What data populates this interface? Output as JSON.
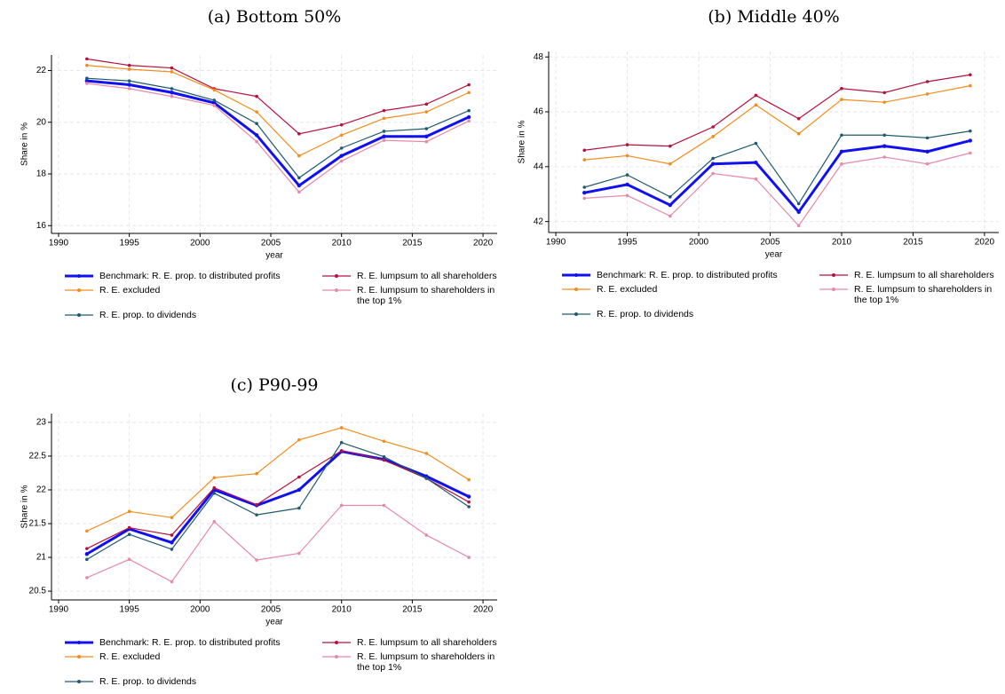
{
  "chart_data": [
    {
      "type": "line",
      "title": "(a) Bottom 50%",
      "xlabel": "year",
      "ylabel": "Share in %",
      "x": [
        1992,
        1995,
        1998,
        2001,
        2004,
        2007,
        2010,
        2013,
        2016,
        2019
      ],
      "xlim": [
        1989.5,
        2021
      ],
      "xticks": [
        1990,
        1995,
        2000,
        2005,
        2010,
        2015,
        2020
      ],
      "ylim": [
        15.7,
        22.6
      ],
      "yticks": [
        16,
        18,
        20,
        22
      ],
      "grid": true,
      "legend": "bottom",
      "series": [
        {
          "name": "Benchmark: R. E. prop. to distributed profits",
          "color": "#1010f0",
          "values": [
            21.6,
            21.45,
            21.15,
            20.75,
            19.5,
            17.55,
            18.7,
            19.45,
            19.45,
            20.2
          ]
        },
        {
          "name": "R. E. lumpsum to all shareholders",
          "color": "#b5123e",
          "values": [
            22.45,
            22.2,
            22.1,
            21.3,
            21.0,
            19.55,
            19.9,
            20.45,
            20.7,
            21.45
          ]
        },
        {
          "name": "R. E. excluded",
          "color": "#f28c1b",
          "values": [
            22.2,
            22.05,
            21.95,
            21.25,
            20.4,
            18.7,
            19.5,
            20.15,
            20.4,
            21.15
          ]
        },
        {
          "name": "R. E. lumpsum to shareholders in the top 1%",
          "color": "#e58aa8",
          "values": [
            21.5,
            21.3,
            21.0,
            20.65,
            19.25,
            17.3,
            18.5,
            19.3,
            19.25,
            20.05
          ]
        },
        {
          "name": "R. E. prop. to dividends",
          "color": "#1f5a6e",
          "values": [
            21.7,
            21.6,
            21.3,
            20.85,
            19.95,
            17.85,
            19.0,
            19.65,
            19.75,
            20.45
          ]
        }
      ]
    },
    {
      "type": "line",
      "title": "(b) Middle 40%",
      "xlabel": "year",
      "ylabel": "Share in %",
      "x": [
        1992,
        1995,
        1998,
        2001,
        2004,
        2007,
        2010,
        2013,
        2016,
        2019
      ],
      "xlim": [
        1989.5,
        2021
      ],
      "xticks": [
        1990,
        1995,
        2000,
        2005,
        2010,
        2015,
        2020
      ],
      "ylim": [
        41.6,
        48.2
      ],
      "yticks": [
        42,
        44,
        46,
        48
      ],
      "grid": true,
      "legend": "bottom",
      "series": [
        {
          "name": "Benchmark: R. E. prop. to distributed profits",
          "color": "#1010f0",
          "values": [
            43.05,
            43.35,
            42.6,
            44.1,
            44.15,
            42.35,
            44.55,
            44.75,
            44.55,
            44.95
          ]
        },
        {
          "name": "R. E. lumpsum to all shareholders",
          "color": "#b5123e",
          "values": [
            44.6,
            44.8,
            44.75,
            45.45,
            46.6,
            45.75,
            46.85,
            46.7,
            47.1,
            47.35
          ]
        },
        {
          "name": "R. E. excluded",
          "color": "#f28c1b",
          "values": [
            44.25,
            44.4,
            44.1,
            45.1,
            46.25,
            45.2,
            46.45,
            46.35,
            46.65,
            46.95
          ]
        },
        {
          "name": "R. E. lumpsum to shareholders in the top 1%",
          "color": "#e58aa8",
          "values": [
            42.85,
            42.95,
            42.2,
            43.75,
            43.55,
            41.85,
            44.1,
            44.35,
            44.1,
            44.5
          ]
        },
        {
          "name": "R. E. prop. to dividends",
          "color": "#1f5a6e",
          "values": [
            43.25,
            43.7,
            42.9,
            44.3,
            44.85,
            42.65,
            45.15,
            45.15,
            45.05,
            45.3
          ]
        }
      ]
    },
    {
      "type": "line",
      "title": "(c) P90-99",
      "xlabel": "year",
      "ylabel": "Share in %",
      "x": [
        1992,
        1995,
        1998,
        2001,
        2004,
        2007,
        2010,
        2013,
        2016,
        2019
      ],
      "xlim": [
        1989.5,
        2021
      ],
      "xticks": [
        1990,
        1995,
        2000,
        2005,
        2010,
        2015,
        2020
      ],
      "ylim": [
        20.37,
        23.13
      ],
      "yticks": [
        20.5,
        21,
        21.5,
        22,
        22.5,
        23
      ],
      "grid": true,
      "legend": "bottom",
      "series": [
        {
          "name": "Benchmark: R. E. prop. to distributed profits",
          "color": "#1010f0",
          "values": [
            21.05,
            21.42,
            21.22,
            22.0,
            21.77,
            22.0,
            22.57,
            22.45,
            22.2,
            21.9
          ]
        },
        {
          "name": "R. E. lumpsum to all shareholders",
          "color": "#b5123e",
          "values": [
            21.13,
            21.44,
            21.33,
            22.03,
            21.78,
            22.19,
            22.58,
            22.44,
            22.17,
            21.82
          ]
        },
        {
          "name": "R. E. excluded",
          "color": "#f28c1b",
          "values": [
            21.39,
            21.68,
            21.59,
            22.18,
            22.24,
            22.74,
            22.92,
            22.72,
            22.54,
            22.15
          ]
        },
        {
          "name": "R. E. lumpsum to shareholders in the top 1%",
          "color": "#e58aa8",
          "values": [
            20.7,
            20.97,
            20.64,
            21.53,
            20.96,
            21.06,
            21.77,
            21.77,
            21.33,
            21.0
          ]
        },
        {
          "name": "R. E. prop. to dividends",
          "color": "#1f5a6e",
          "values": [
            20.97,
            21.34,
            21.12,
            21.95,
            21.63,
            21.73,
            22.7,
            22.49,
            22.17,
            21.75
          ]
        }
      ]
    }
  ]
}
